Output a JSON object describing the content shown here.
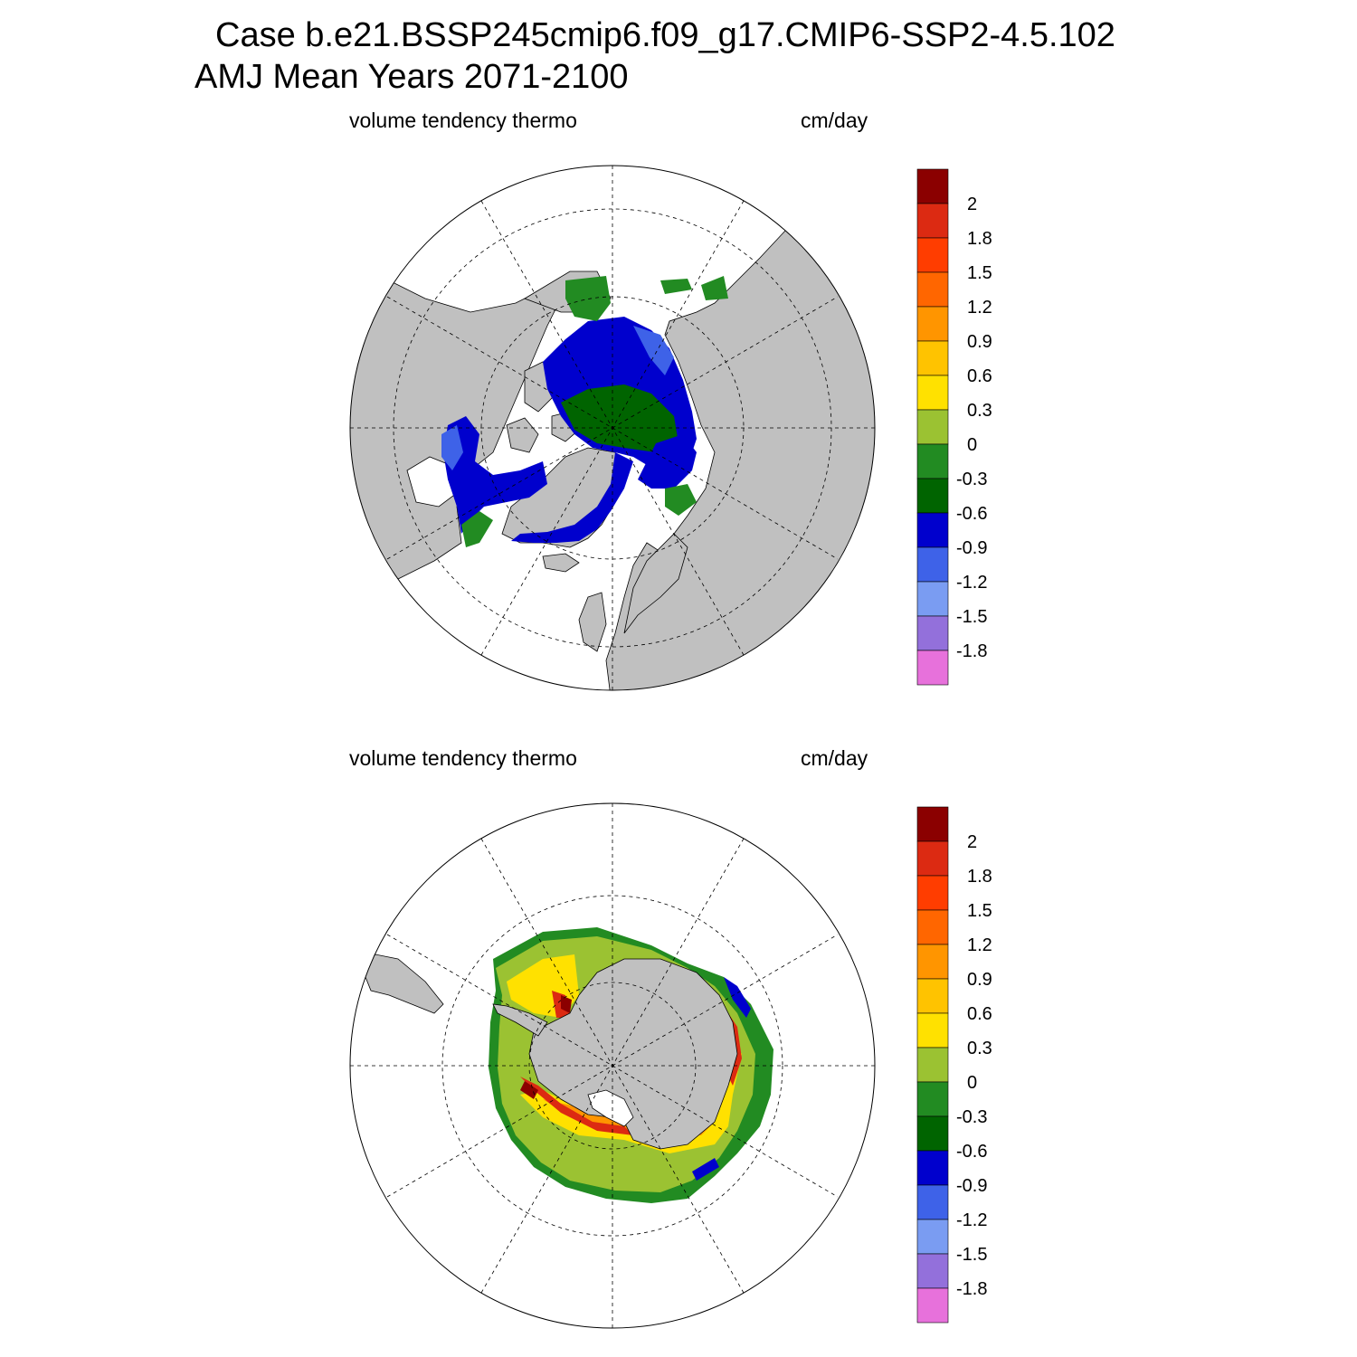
{
  "title": {
    "case": "Case b.e21.BSSP245cmip6.f09_g17.CMIP6-SSP2-4.5.102",
    "period": "AMJ Mean    Years 2071-2100"
  },
  "panels": [
    {
      "id": "north",
      "hemisphere": "Arctic (north polar stereographic)",
      "variable": "volume tendency thermo",
      "units": "cm/day"
    },
    {
      "id": "south",
      "hemisphere": "Antarctic (south polar stereographic)",
      "variable": "volume tendency thermo",
      "units": "cm/day"
    }
  ],
  "colorbar": {
    "labels": [
      "2",
      "1.8",
      "1.5",
      "1.2",
      "0.9",
      "0.6",
      "0.3",
      "0",
      "-0.3",
      "-0.6",
      "-0.9",
      "-1.2",
      "-1.5",
      "-1.8"
    ],
    "colors": [
      "#8b0000",
      "#dc2a12",
      "#ff3d00",
      "#ff6600",
      "#ff9500",
      "#ffc300",
      "#ffe100",
      "#9bc232",
      "#228b22",
      "#006400",
      "#0000cd",
      "#3e62e8",
      "#7a9cf2",
      "#9370db",
      "#e771db"
    ]
  },
  "colors": {
    "land": "#c0c0c0",
    "ocean": "#ffffff",
    "grid": "#000000"
  }
}
